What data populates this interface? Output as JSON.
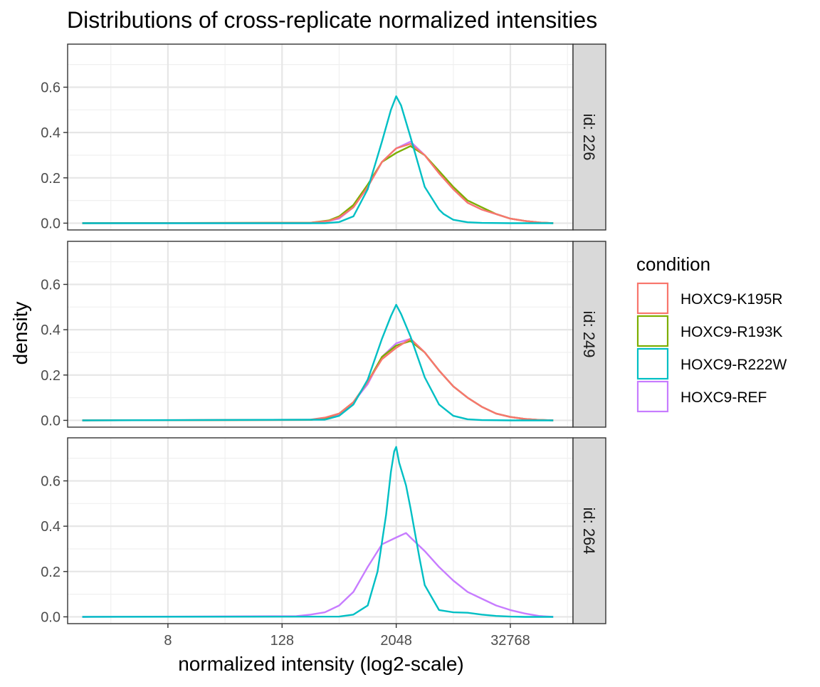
{
  "chart_data": {
    "type": "line",
    "title": "Distributions of cross-replicate normalized intensities",
    "xlabel": "normalized intensity (log2-scale)",
    "ylabel": "density",
    "x_scale": "log2",
    "x_ticks": [
      8,
      128,
      2048,
      32768
    ],
    "x_tick_labels": [
      "8",
      "128",
      "2048",
      "32768"
    ],
    "xlim": [
      0.7,
      150000
    ],
    "y_ticks": [
      0.0,
      0.2,
      0.4,
      0.6
    ],
    "y_tick_labels": [
      "0.0",
      "0.2",
      "0.4",
      "0.6"
    ],
    "ylim": [
      -0.03,
      0.79
    ],
    "grid": true,
    "legend": {
      "title": "condition",
      "position": "right",
      "entries": [
        {
          "label": "HOXC9-K195R",
          "color": "#F8766D"
        },
        {
          "label": "HOXC9-R193K",
          "color": "#7CAE00"
        },
        {
          "label": "HOXC9-R222W",
          "color": "#00BFC4"
        },
        {
          "label": "HOXC9-REF",
          "color": "#C77CFF"
        }
      ]
    },
    "panels": [
      {
        "strip_label": "id: 226",
        "series": [
          {
            "name": "HOXC9-REF",
            "color": "#C77CFF",
            "x": [
              1,
              256,
              400,
              512,
              724,
              1024,
              1448,
              2048,
              2896,
              4096,
              5793,
              8192,
              11585,
              16384,
              23170,
              32768,
              46341,
              65536,
              92682
            ],
            "y": [
              0,
              0,
              0.01,
              0.02,
              0.07,
              0.16,
              0.27,
              0.33,
              0.36,
              0.3,
              0.22,
              0.15,
              0.09,
              0.06,
              0.04,
              0.02,
              0.01,
              0.003,
              0
            ]
          },
          {
            "name": "HOXC9-R193K",
            "color": "#7CAE00",
            "x": [
              1,
              256,
              400,
              512,
              724,
              1024,
              1448,
              2048,
              2896,
              4096,
              5793,
              8192,
              11585,
              16384,
              23170,
              32768,
              46341,
              65536,
              92682
            ],
            "y": [
              0,
              0.002,
              0.012,
              0.03,
              0.08,
              0.17,
              0.27,
              0.31,
              0.34,
              0.3,
              0.23,
              0.16,
              0.1,
              0.07,
              0.04,
              0.02,
              0.01,
              0.003,
              0
            ]
          },
          {
            "name": "HOXC9-K195R",
            "color": "#F8766D",
            "x": [
              1,
              256,
              400,
              512,
              724,
              1024,
              1448,
              2048,
              2896,
              4096,
              5793,
              8192,
              11585,
              16384,
              23170,
              32768,
              46341,
              65536,
              92682
            ],
            "y": [
              0,
              0.002,
              0.01,
              0.025,
              0.07,
              0.16,
              0.27,
              0.33,
              0.35,
              0.3,
              0.22,
              0.15,
              0.09,
              0.06,
              0.04,
              0.02,
              0.01,
              0.003,
              0
            ]
          },
          {
            "name": "HOXC9-R222W",
            "color": "#00BFC4",
            "x": [
              1,
              362,
              512,
              724,
              1024,
              1448,
              1800,
              2048,
              2300,
              2896,
              4096,
              5793,
              6500,
              8192,
              11585,
              16384,
              32768,
              92682
            ],
            "y": [
              0,
              0,
              0.005,
              0.03,
              0.15,
              0.36,
              0.5,
              0.56,
              0.52,
              0.38,
              0.16,
              0.06,
              0.04,
              0.015,
              0.004,
              0.001,
              0,
              0
            ]
          }
        ]
      },
      {
        "strip_label": "id: 249",
        "series": [
          {
            "name": "HOXC9-REF",
            "color": "#C77CFF",
            "x": [
              1,
              256,
              362,
              512,
              724,
              1024,
              1448,
              2048,
              2896,
              4096,
              5793,
              8192,
              11585,
              16384,
              23170,
              32768,
              46341,
              65536,
              92682
            ],
            "y": [
              0,
              0.002,
              0.01,
              0.025,
              0.08,
              0.16,
              0.28,
              0.34,
              0.36,
              0.3,
              0.22,
              0.15,
              0.1,
              0.06,
              0.03,
              0.015,
              0.006,
              0.002,
              0
            ]
          },
          {
            "name": "HOXC9-R193K",
            "color": "#7CAE00",
            "x": [
              1,
              256,
              362,
              512,
              724,
              1024,
              1448,
              2048,
              2896,
              4096,
              5793,
              8192,
              11585,
              16384,
              23170,
              32768,
              46341,
              65536,
              92682
            ],
            "y": [
              0,
              0.002,
              0.01,
              0.03,
              0.08,
              0.17,
              0.28,
              0.33,
              0.35,
              0.3,
              0.22,
              0.15,
              0.1,
              0.06,
              0.03,
              0.015,
              0.006,
              0.002,
              0
            ]
          },
          {
            "name": "HOXC9-K195R",
            "color": "#F8766D",
            "x": [
              1,
              256,
              362,
              512,
              724,
              1024,
              1448,
              2048,
              2896,
              4096,
              5793,
              8192,
              11585,
              16384,
              23170,
              32768,
              46341,
              65536,
              92682
            ],
            "y": [
              0,
              0.003,
              0.012,
              0.03,
              0.08,
              0.17,
              0.27,
              0.32,
              0.36,
              0.3,
              0.22,
              0.15,
              0.1,
              0.06,
              0.03,
              0.015,
              0.006,
              0.002,
              0
            ]
          },
          {
            "name": "HOXC9-R222W",
            "color": "#00BFC4",
            "x": [
              1,
              362,
              512,
              724,
              1024,
              1448,
              1800,
              2048,
              2300,
              2896,
              4096,
              5793,
              8192,
              11585,
              16384,
              32768,
              92682
            ],
            "y": [
              0,
              0.003,
              0.02,
              0.07,
              0.18,
              0.36,
              0.46,
              0.51,
              0.47,
              0.37,
              0.19,
              0.07,
              0.02,
              0.005,
              0.001,
              0,
              0
            ]
          }
        ]
      },
      {
        "strip_label": "id: 264",
        "series": [
          {
            "name": "HOXC9-REF",
            "color": "#C77CFF",
            "x": [
              1,
              181,
              256,
              362,
              512,
              724,
              1024,
              1448,
              2048,
              2600,
              2896,
              4096,
              5793,
              8192,
              11585,
              16384,
              23170,
              32768,
              46341,
              65536,
              92682
            ],
            "y": [
              0,
              0.003,
              0.01,
              0.02,
              0.05,
              0.11,
              0.22,
              0.32,
              0.35,
              0.37,
              0.35,
              0.29,
              0.22,
              0.16,
              0.11,
              0.08,
              0.05,
              0.03,
              0.015,
              0.004,
              0
            ]
          },
          {
            "name": "HOXC9-R222W",
            "color": "#00BFC4",
            "x": [
              1,
              512,
              724,
              1024,
              1300,
              1600,
              1800,
              1950,
              2048,
              2200,
              2600,
              2896,
              3600,
              4096,
              5793,
              8192,
              11585,
              16384,
              23170,
              32768,
              46341,
              92682
            ],
            "y": [
              0,
              0.001,
              0.01,
              0.05,
              0.2,
              0.45,
              0.64,
              0.73,
              0.75,
              0.68,
              0.58,
              0.48,
              0.26,
              0.14,
              0.03,
              0.02,
              0.018,
              0.01,
              0.004,
              0.001,
              0,
              0
            ]
          }
        ]
      }
    ]
  }
}
